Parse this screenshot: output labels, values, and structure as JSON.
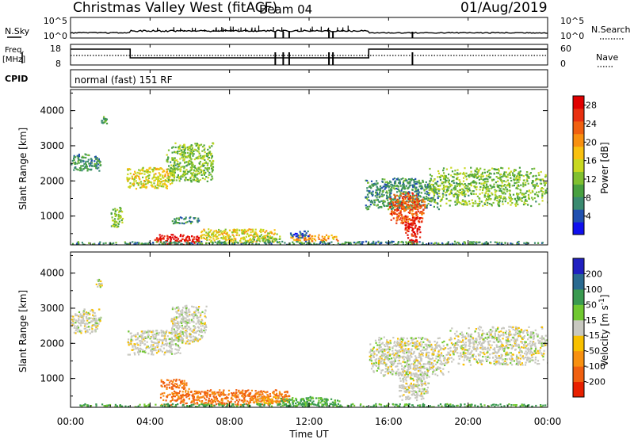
{
  "header": {
    "station": "Christmas Valley West (fitACF)",
    "beam": "Beam 04",
    "date": "01/Aug/2019"
  },
  "panels": {
    "nsky": {
      "left_label": "N.Sky",
      "left_ticks": [
        "10^5",
        "10^0"
      ],
      "right_label": "N.Search",
      "right_ticks": [
        "10^5",
        "10^0"
      ]
    },
    "freq": {
      "left_label_1": "Freq.",
      "left_label_2": "[MHz]",
      "left_ticks": [
        "18",
        "8"
      ],
      "right_label": "Nave",
      "right_ticks": [
        "60",
        "0"
      ]
    },
    "cpid": {
      "label": "CPID",
      "text": "normal (fast) 151 RF"
    }
  },
  "axes": {
    "ylabel": "Slant Range [km]",
    "yticks": [
      "1000",
      "2000",
      "3000",
      "4000"
    ],
    "xticks": [
      "00:00",
      "04:00",
      "08:00",
      "12:00",
      "16:00",
      "20:00",
      "00:00"
    ],
    "xlabel": "Time UT"
  },
  "colorbars": {
    "power": {
      "label": "Power [dB]",
      "ticks": [
        "4",
        "8",
        "12",
        "16",
        "20",
        "24",
        "28"
      ],
      "colors": [
        "#1010ee",
        "#2050b0",
        "#3a8a70",
        "#48a040",
        "#80c030",
        "#c8d820",
        "#f8c010",
        "#f89010",
        "#f06010",
        "#e83010",
        "#e00000"
      ]
    },
    "velocity": {
      "label": "Velocity [m s^-1]",
      "ticks": [
        "200",
        "100",
        "50",
        "15",
        "-15",
        "-50",
        "-100",
        "-200"
      ],
      "colors": [
        "#2020c0",
        "#2a6a90",
        "#3a9a50",
        "#70c830",
        "#c8c8c0",
        "#f8c000",
        "#f89010",
        "#f06010",
        "#e82000"
      ]
    }
  },
  "chart_data": [
    {
      "type": "heatmap",
      "title": "Power",
      "xlabel": "Time UT",
      "ylabel": "Slant Range [km]",
      "xlim": [
        0,
        24
      ],
      "ylim": [
        180,
        4600
      ],
      "zlabel": "Power [dB]",
      "zlim": [
        0,
        30
      ],
      "regions": [
        {
          "t": [
            0.0,
            1.5
          ],
          "r": [
            2300,
            2800
          ],
          "value": 8
        },
        {
          "t": [
            1.5,
            1.8
          ],
          "r": [
            3650,
            3850
          ],
          "value": 8
        },
        {
          "t": [
            2.0,
            2.6
          ],
          "r": [
            700,
            1300
          ],
          "value": 12
        },
        {
          "t": [
            2.8,
            5.2
          ],
          "r": [
            1800,
            2400
          ],
          "value": 16
        },
        {
          "t": [
            4.8,
            7.2
          ],
          "r": [
            2000,
            3100
          ],
          "value": 12
        },
        {
          "t": [
            5.0,
            6.5
          ],
          "r": [
            800,
            1000
          ],
          "value": 8
        },
        {
          "t": [
            4.2,
            6.5
          ],
          "r": [
            200,
            500
          ],
          "value": 28
        },
        {
          "t": [
            6.5,
            10.5
          ],
          "r": [
            250,
            650
          ],
          "value": 16
        },
        {
          "t": [
            9.0,
            10.5
          ],
          "r": [
            300,
            450
          ],
          "value": 12
        },
        {
          "t": [
            11.0,
            13.5
          ],
          "r": [
            300,
            500
          ],
          "value": 20
        },
        {
          "t": [
            11.0,
            12.0
          ],
          "r": [
            400,
            600
          ],
          "value": 4
        },
        {
          "t": [
            14.8,
            18.5
          ],
          "r": [
            1200,
            2100
          ],
          "value": 8
        },
        {
          "t": [
            16.0,
            17.8
          ],
          "r": [
            800,
            1700
          ],
          "value": 24
        },
        {
          "t": [
            16.8,
            17.6
          ],
          "r": [
            400,
            1000
          ],
          "value": 28
        },
        {
          "t": [
            17.0,
            17.4
          ],
          "r": [
            200,
            400
          ],
          "value": 28
        },
        {
          "t": [
            18.0,
            24.0
          ],
          "r": [
            1300,
            2400
          ],
          "value": 12
        },
        {
          "t": [
            0.0,
            24.0
          ],
          "r": [
            200,
            300
          ],
          "value": 8
        }
      ]
    },
    {
      "type": "heatmap",
      "title": "Velocity",
      "xlabel": "Time UT",
      "ylabel": "Slant Range [km]",
      "xlim": [
        0,
        24
      ],
      "ylim": [
        180,
        4600
      ],
      "zlabel": "Velocity [m s^-1]",
      "zlim": [
        -200,
        200
      ],
      "regions": [
        {
          "t": [
            0.0,
            1.5
          ],
          "r": [
            2300,
            3000
          ],
          "value": 0
        },
        {
          "t": [
            1.2,
            1.6
          ],
          "r": [
            3600,
            3850
          ],
          "value": 0
        },
        {
          "t": [
            2.8,
            5.5
          ],
          "r": [
            1700,
            2400
          ],
          "value": 0
        },
        {
          "t": [
            5.0,
            6.8
          ],
          "r": [
            2000,
            3100
          ],
          "value": 0
        },
        {
          "t": [
            4.5,
            6.0
          ],
          "r": [
            700,
            1000
          ],
          "value": -80
        },
        {
          "t": [
            4.5,
            11.0
          ],
          "r": [
            250,
            700
          ],
          "value": -80
        },
        {
          "t": [
            9.0,
            11.0
          ],
          "r": [
            300,
            500
          ],
          "value": -30
        },
        {
          "t": [
            10.5,
            13.5
          ],
          "r": [
            250,
            500
          ],
          "value": 40
        },
        {
          "t": [
            15.0,
            19.0
          ],
          "r": [
            1100,
            2200
          ],
          "value": 0
        },
        {
          "t": [
            16.5,
            18.0
          ],
          "r": [
            400,
            1200
          ],
          "value": 0
        },
        {
          "t": [
            19.0,
            24.0
          ],
          "r": [
            1400,
            2500
          ],
          "value": 0
        },
        {
          "t": [
            0.0,
            24.0
          ],
          "r": [
            200,
            300
          ],
          "value": 40
        }
      ]
    }
  ]
}
